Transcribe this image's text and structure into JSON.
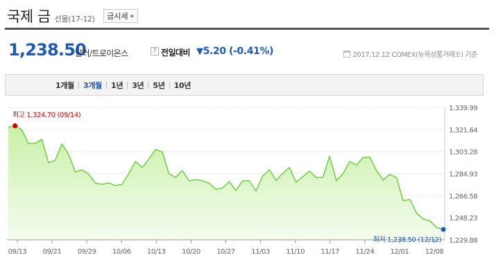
{
  "header": {
    "title": "국제 금",
    "subtitle": "선물(17-12)",
    "quote_button": "금시세"
  },
  "price": {
    "value": "1,238.50",
    "unit": "달러/트로이온스",
    "help_icon": "?",
    "compare_label": "전일대비",
    "change_icon": "▼",
    "change": "5.20 (-0.41%)",
    "date_source": "2017.12.12  COMEX(뉴욕상품거래소) 기준"
  },
  "periods": {
    "tabs": [
      "1개월",
      "3개월",
      "1년",
      "3년",
      "5년",
      "10년"
    ],
    "active": "3개월"
  },
  "colors": {
    "accent": "#1e5ab8",
    "line": "#6bd03c",
    "fill_top": "#c9f0a8",
    "fill_bottom": "#f4fcee",
    "high": "#cc0000",
    "low": "#1e5ab8"
  },
  "chart_data": {
    "type": "area",
    "ylim": [
      1229.88,
      1339.99
    ],
    "yticks": [
      "1,339.99",
      "1,321.64",
      "1,303.28",
      "1,284.93",
      "1,266.58",
      "1,248.23",
      "1,229.88"
    ],
    "xticks": [
      "09/13",
      "09/21",
      "09/29",
      "10/06",
      "10/13",
      "10/20",
      "10/27",
      "11/03",
      "11/10",
      "11/17",
      "11/24",
      "12/01",
      "12/08"
    ],
    "high_label": "최고 1,324.70 (09/14)",
    "low_label": "최저 1,238.50 (12/12)",
    "values": [
      1323.5,
      1324.7,
      1321.5,
      1310,
      1310,
      1313.5,
      1294,
      1296,
      1309.6,
      1301,
      1286.3,
      1288,
      1284.5,
      1277,
      1276,
      1277.2,
      1275,
      1276,
      1285,
      1295,
      1290,
      1297,
      1305,
      1303,
      1284.7,
      1281.8,
      1287.5,
      1279,
      1280,
      1279,
      1276.9,
      1271.9,
      1273,
      1278.3,
      1270.9,
      1278.8,
      1279,
      1270.5,
      1283,
      1288,
      1279.2,
      1285.1,
      1290,
      1277.8,
      1282.4,
      1287,
      1281.6,
      1282,
      1299.3,
      1279.2,
      1284.7,
      1295,
      1292,
      1298.2,
      1298.7,
      1287.6,
      1279.5,
      1284.5,
      1281.5,
      1262.4,
      1263.5,
      1252.1,
      1247.1,
      1245.6,
      1240,
      1238.5
    ]
  }
}
